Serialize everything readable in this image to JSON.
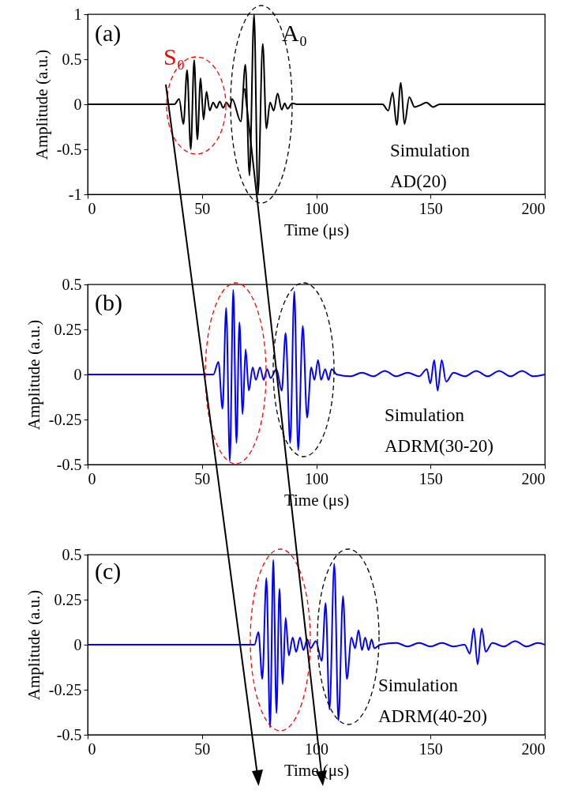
{
  "chart_data": [
    {
      "type": "line",
      "xlabel": "Time (μs)",
      "ylabel": "Amplitude (a.u.)",
      "xlim": [
        0,
        200
      ],
      "ylim": [
        -1,
        1
      ],
      "xticks": [
        0,
        50,
        100,
        150,
        200
      ],
      "yticks": [
        -1,
        -0.5,
        0,
        0.5,
        1
      ],
      "annotations": [
        "(a)",
        "S₀",
        "A₀",
        "Simulation\nAD(20)"
      ],
      "series": [
        {
          "color": "#000000",
          "x": [
            0,
            38,
            40,
            41.9,
            43.5,
            45.1,
            46.6,
            48,
            49.4,
            50.7,
            52,
            53.4,
            54.9,
            56.4,
            57.8,
            59.3,
            60.7,
            62.2,
            63.2,
            67,
            69,
            70.8,
            72.8,
            74.5,
            76.6,
            78.2,
            79.8,
            81.4,
            83.1,
            84.9,
            86.2,
            87.4,
            89.5,
            92,
            129,
            131.5,
            133.4,
            135.2,
            137,
            138.6,
            140.7,
            143,
            145.5,
            148.2,
            151.1,
            154,
            200
          ],
          "values": [
            0,
            0,
            0.06,
            -0.22,
            0.38,
            -0.5,
            0.49,
            -0.39,
            0.29,
            -0.17,
            0.14,
            -0.07,
            0.02,
            -0.04,
            0.03,
            -0.04,
            0.02,
            -0.03,
            0.06,
            -0.19,
            0.44,
            -0.79,
            1,
            -1,
            0.67,
            -0.27,
            0.02,
            -0.07,
            0.12,
            -0.06,
            0.01,
            -0.05,
            0.01,
            0,
            0,
            -0.07,
            0.13,
            -0.23,
            0.24,
            -0.22,
            0.08,
            -0.03,
            -0.01,
            0.02,
            -0.03,
            0,
            0
          ]
        }
      ]
    },
    {
      "type": "line",
      "xlabel": "Time (μs)",
      "ylabel": "Amplitude (a.u.)",
      "xlim": [
        0,
        200
      ],
      "ylim": [
        -0.5,
        0.5
      ],
      "xticks": [
        0,
        50,
        100,
        150,
        200
      ],
      "yticks": [
        -0.5,
        -0.25,
        0,
        0.25,
        0.5
      ],
      "annotations": [
        "(b)",
        "Simulation\nADRM(30-20)"
      ],
      "series": [
        {
          "color": "#0000ff",
          "x": [
            0,
            55,
            57.2,
            59,
            60.6,
            62.2,
            63.7,
            65.1,
            66.4,
            67.8,
            69.1,
            70.5,
            72.2,
            73.6,
            75.4,
            77,
            78.5,
            80,
            82.6,
            84.9,
            86.6,
            88.6,
            90.4,
            92.1,
            94.1,
            96,
            97.8,
            99.2,
            100.8,
            102.1,
            103.9,
            105.4,
            106.7,
            109,
            115,
            120,
            125,
            130,
            135,
            140,
            145,
            148.4,
            149.9,
            151.6,
            153.1,
            154.9,
            156.8,
            160,
            165,
            170,
            175,
            180,
            185,
            190,
            195,
            200
          ],
          "values": [
            0,
            0,
            0.07,
            -0.19,
            0.37,
            -0.48,
            0.47,
            -0.38,
            0.29,
            -0.22,
            0.14,
            -0.09,
            0.04,
            -0.03,
            0.04,
            -0.03,
            0.03,
            -0.02,
            0.03,
            -0.09,
            0.23,
            -0.38,
            0.46,
            -0.42,
            0.27,
            -0.24,
            0.04,
            -0.03,
            0.08,
            -0.03,
            0.03,
            -0.03,
            0.03,
            0,
            -0.01,
            0.01,
            -0.01,
            0.02,
            -0.01,
            0.01,
            -0.01,
            0.03,
            -0.05,
            0.08,
            -0.09,
            0.08,
            -0.04,
            0.01,
            -0.01,
            0.02,
            -0.01,
            0.02,
            -0.01,
            0.02,
            -0.01,
            0
          ]
        }
      ]
    },
    {
      "type": "line",
      "xlabel": "Time (μs)",
      "ylabel": "Amplitude (a.u.)",
      "xlim": [
        0,
        200
      ],
      "ylim": [
        -0.5,
        0.5
      ],
      "xticks": [
        0,
        50,
        100,
        150,
        200
      ],
      "yticks": [
        -0.5,
        -0.25,
        0,
        0.25,
        0.5
      ],
      "annotations": [
        "(c)",
        "Simulation\nADRM(40-20)"
      ],
      "series": [
        {
          "color": "#0000ff",
          "x": [
            0,
            73,
            74.7,
            76.4,
            78.2,
            79.8,
            81.2,
            82.6,
            83.9,
            85.3,
            86.6,
            88,
            89.7,
            91.2,
            92.9,
            94.4,
            96.1,
            97.5,
            99.8,
            102.4,
            104.1,
            105.8,
            107.9,
            109.7,
            111.7,
            113.4,
            115.4,
            117,
            118.5,
            120,
            121.4,
            122.9,
            124.2,
            125.4,
            128,
            135,
            140,
            145,
            150,
            155,
            160,
            164.9,
            167.2,
            168.9,
            170.6,
            172.4,
            174.1,
            177,
            182,
            187,
            192,
            197,
            200
          ],
          "values": [
            0,
            0,
            0.07,
            -0.19,
            0.37,
            -0.46,
            0.47,
            -0.38,
            0.31,
            -0.22,
            0.15,
            -0.06,
            0.04,
            -0.04,
            0.04,
            -0.03,
            0.03,
            -0.02,
            0.02,
            -0.09,
            0.23,
            -0.36,
            0.45,
            -0.42,
            0.27,
            -0.19,
            0.04,
            -0.02,
            0.08,
            -0.03,
            0.04,
            -0.03,
            0.03,
            -0.02,
            0,
            0.01,
            -0.01,
            0.01,
            -0.01,
            0.01,
            -0.01,
            0,
            -0.05,
            0.09,
            -0.11,
            0.09,
            -0.04,
            0.01,
            -0.01,
            0.02,
            -0.01,
            0.01,
            0
          ]
        }
      ]
    }
  ]
}
